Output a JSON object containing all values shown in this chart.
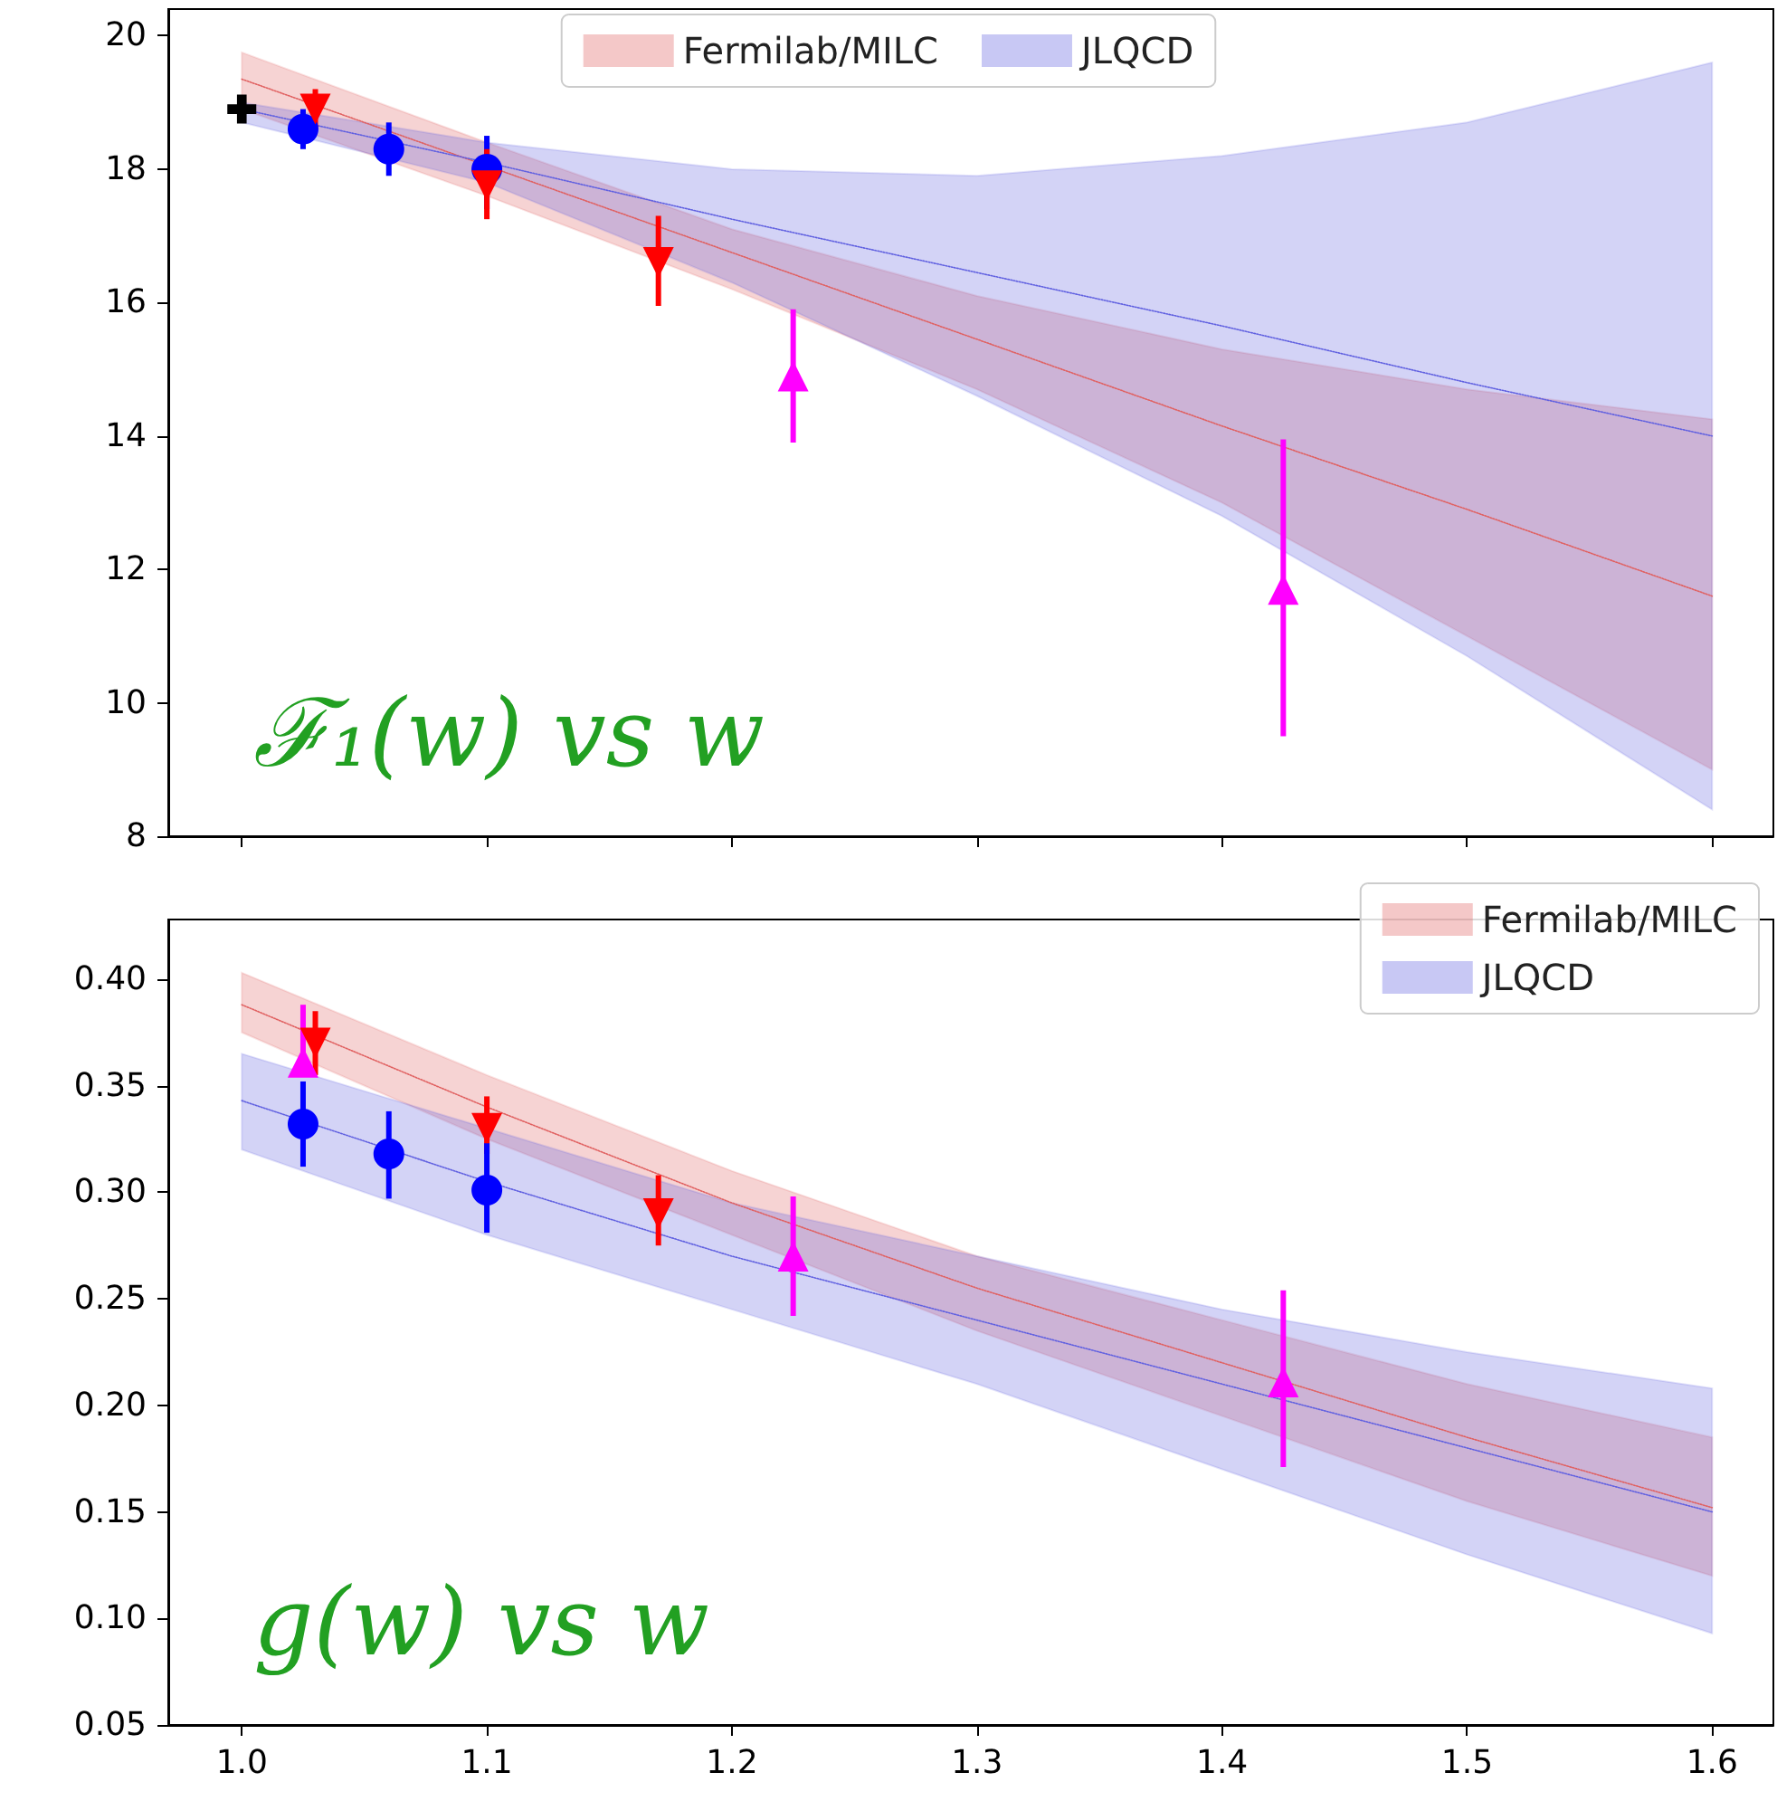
{
  "chart_data": [
    {
      "type": "line",
      "xlim": [
        0.97,
        1.625
      ],
      "ylim": [
        8,
        20.4
      ],
      "xticks": [
        1,
        1.1,
        1.2,
        1.3,
        1.4,
        1.5,
        1.6
      ],
      "yticks": [
        8,
        10,
        12,
        14,
        16,
        18,
        20
      ],
      "tick_labels": "y",
      "legend": "top",
      "grid": false,
      "annotations": [
        "ℱ₁(w) vs w"
      ],
      "series": [
        {
          "name": "Fermilab/MILC",
          "type": "line",
          "color": "#e06060",
          "line_style": "dotted",
          "x": [
            1.0,
            1.1,
            1.2,
            1.3,
            1.4,
            1.5,
            1.6
          ],
          "values": [
            19.35,
            18.05,
            16.75,
            15.45,
            14.15,
            12.9,
            11.6
          ],
          "lower": [
            18.9,
            17.6,
            16.2,
            14.7,
            13.0,
            11.0,
            9.0
          ],
          "upper": [
            19.75,
            18.4,
            17.1,
            16.1,
            15.3,
            14.7,
            14.25
          ]
        },
        {
          "name": "JLQCD",
          "type": "line",
          "color": "#6060e0",
          "line_style": "dotted",
          "x": [
            1.0,
            1.1,
            1.2,
            1.3,
            1.4,
            1.5,
            1.6
          ],
          "values": [
            18.9,
            18.1,
            17.25,
            16.45,
            15.65,
            14.8,
            14.0
          ],
          "lower": [
            18.7,
            17.8,
            16.3,
            14.6,
            12.8,
            10.7,
            8.4
          ],
          "upper": [
            19.0,
            18.4,
            18.0,
            17.9,
            18.2,
            18.7,
            19.6
          ]
        },
        {
          "type": "scatter",
          "color": "#0000ff",
          "marker": "circle",
          "x": [
            1.025,
            1.06,
            1.1
          ],
          "values": [
            18.6,
            18.3,
            18.0
          ],
          "errors": [
            [
              18.3,
              18.9
            ],
            [
              17.9,
              18.7
            ],
            [
              17.4,
              18.5
            ]
          ]
        },
        {
          "type": "scatter",
          "color": "#000000",
          "marker": "cross",
          "x": [
            1.0
          ],
          "values": [
            18.9
          ],
          "errors": [
            0.15
          ]
        },
        {
          "type": "scatter",
          "color": "#ff0000",
          "marker": "triangle_down",
          "x": [
            1.03,
            1.1,
            1.17
          ],
          "values": [
            18.9,
            17.75,
            16.6
          ],
          "errors": [
            0.3,
            [
              17.25,
              18.3
            ],
            [
              15.95,
              17.3
            ]
          ]
        },
        {
          "type": "scatter",
          "color": "#ff00ff",
          "marker": "triangle",
          "x": [
            1.225,
            1.425
          ],
          "values": [
            14.9,
            11.7
          ],
          "errors": [
            [
              13.9,
              15.9
            ],
            [
              9.5,
              13.95
            ]
          ]
        }
      ]
    },
    {
      "type": "line",
      "xlim": [
        0.97,
        1.625
      ],
      "ylim": [
        0.05,
        0.428
      ],
      "xticks": [
        {
          "value": 1,
          "label": "1.0"
        },
        1.1,
        1.2,
        1.3,
        1.4,
        1.5,
        1.6
      ],
      "yticks": [
        0.05,
        {
          "value": 0.1,
          "label": "0.10"
        },
        0.15,
        {
          "value": 0.2,
          "label": "0.20"
        },
        0.25,
        {
          "value": 0.3,
          "label": "0.30"
        },
        0.35,
        {
          "value": 0.4,
          "label": "0.40"
        }
      ],
      "legend": "top right",
      "grid": false,
      "annotations": [
        "g(w) vs w"
      ],
      "series": [
        {
          "name": "Fermilab/MILC",
          "type": "line",
          "color": "#e06060",
          "line_style": "dotted",
          "x": [
            1.0,
            1.1,
            1.2,
            1.3,
            1.4,
            1.5,
            1.6
          ],
          "values": [
            0.388,
            0.34,
            0.295,
            0.255,
            0.22,
            0.185,
            0.152
          ],
          "lower": [
            0.375,
            0.325,
            0.28,
            0.235,
            0.195,
            0.155,
            0.12
          ],
          "upper": [
            0.403,
            0.355,
            0.31,
            0.27,
            0.24,
            0.21,
            0.185
          ]
        },
        {
          "name": "JLQCD",
          "type": "line",
          "color": "#6060e0",
          "line_style": "dotted",
          "x": [
            1.0,
            1.1,
            1.2,
            1.3,
            1.4,
            1.5,
            1.6
          ],
          "values": [
            0.343,
            0.305,
            0.27,
            0.24,
            0.21,
            0.18,
            0.15
          ],
          "lower": [
            0.32,
            0.28,
            0.245,
            0.21,
            0.17,
            0.13,
            0.093
          ],
          "upper": [
            0.365,
            0.33,
            0.295,
            0.27,
            0.245,
            0.225,
            0.208
          ]
        },
        {
          "type": "scatter",
          "color": "#ff00ff",
          "marker": "triangle",
          "x": [
            1.025,
            1.225,
            1.425
          ],
          "values": [
            0.361,
            0.27,
            0.211
          ],
          "errors": [
            [
              0.361,
              0.388
            ],
            [
              0.242,
              0.298
            ],
            [
              0.171,
              0.254
            ]
          ]
        },
        {
          "type": "scatter",
          "color": "#ff0000",
          "marker": "triangle_down",
          "x": [
            1.03,
            1.1,
            1.17
          ],
          "values": [
            0.37,
            0.33,
            0.29
          ],
          "errors": [
            [
              0.355,
              0.385
            ],
            [
              0.318,
              0.345
            ],
            [
              0.275,
              0.308
            ]
          ]
        },
        {
          "type": "scatter",
          "color": "#0000ff",
          "marker": "circle",
          "x": [
            1.025,
            1.06,
            1.1
          ],
          "values": [
            0.332,
            0.318,
            0.301
          ],
          "errors": [
            [
              0.312,
              0.352
            ],
            [
              0.297,
              0.338
            ],
            [
              0.281,
              0.323
            ]
          ]
        }
      ]
    }
  ]
}
